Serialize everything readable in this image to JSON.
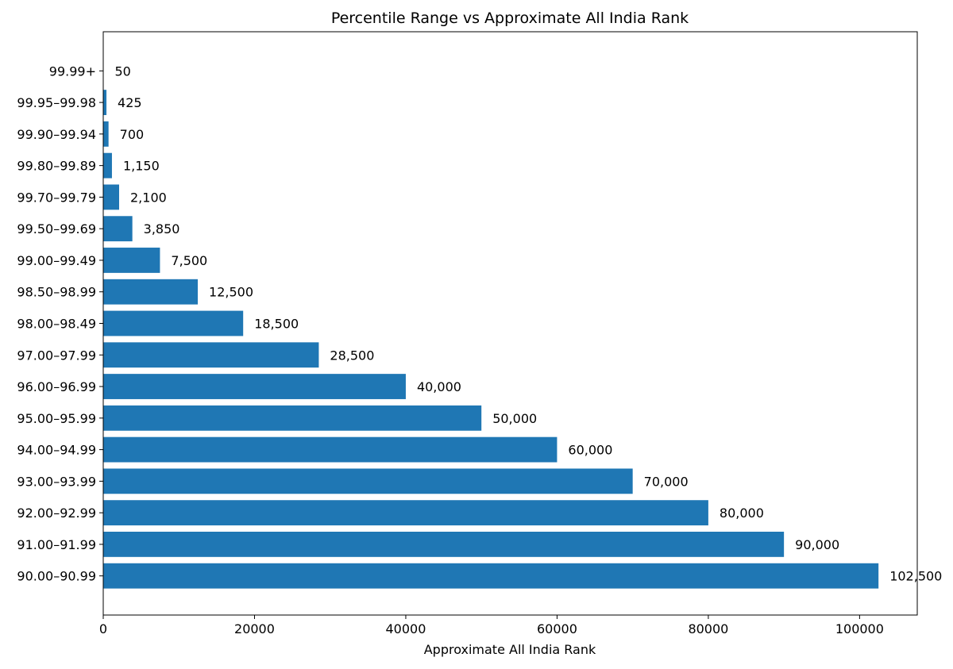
{
  "chart_data": {
    "type": "bar",
    "orientation": "horizontal",
    "title": "Percentile Range vs Approximate All India Rank",
    "xlabel": "Approximate All India Rank",
    "ylabel": "",
    "xlim": [
      0,
      107625
    ],
    "xticks": [
      0,
      20000,
      40000,
      60000,
      80000,
      100000
    ],
    "grid": false,
    "bar_color": "#1f77b4",
    "categories": [
      "90.00–90.99",
      "91.00–91.99",
      "92.00–92.99",
      "93.00–93.99",
      "94.00–94.99",
      "95.00–95.99",
      "96.00–96.99",
      "97.00–97.99",
      "98.00–98.49",
      "98.50–98.99",
      "99.00–99.49",
      "99.50–99.69",
      "99.70–99.79",
      "99.80–99.89",
      "99.90–99.94",
      "99.95–99.98",
      "99.99+"
    ],
    "values": [
      102500,
      90000,
      80000,
      70000,
      60000,
      50000,
      40000,
      28500,
      18500,
      12500,
      7500,
      3850,
      2100,
      1150,
      700,
      425,
      50
    ],
    "data_labels": [
      "102,500",
      "90,000",
      "80,000",
      "70,000",
      "60,000",
      "50,000",
      "40,000",
      "28,500",
      "18,500",
      "12,500",
      "7,500",
      "3,850",
      "2,100",
      "1,150",
      "700",
      "425",
      "50"
    ]
  }
}
